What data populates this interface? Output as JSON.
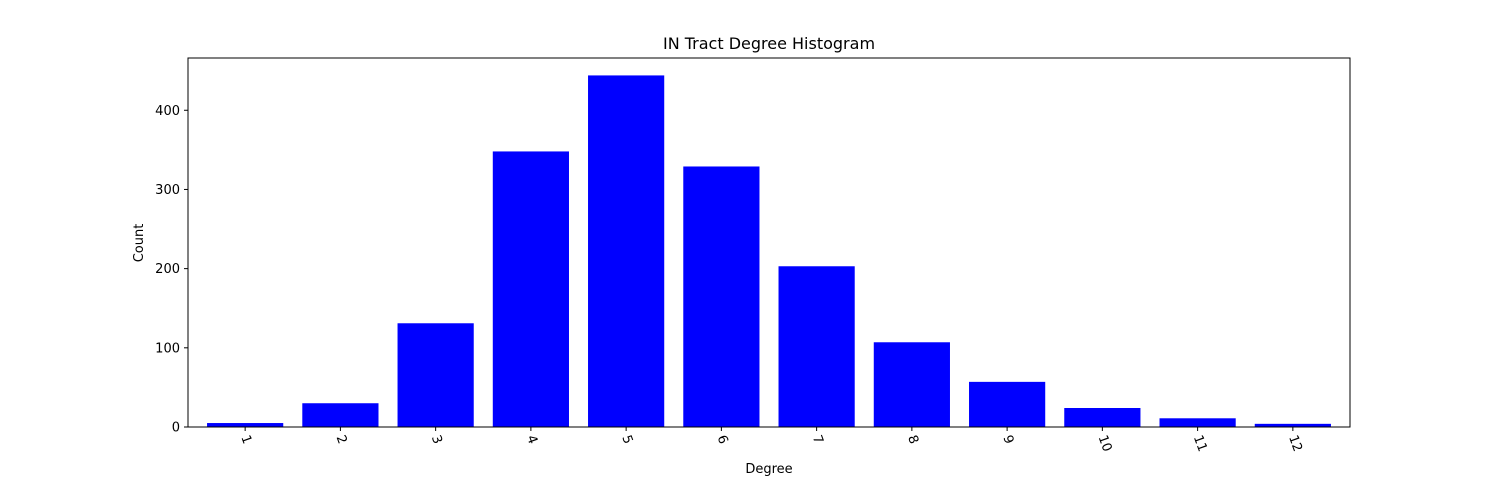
{
  "chart_data": {
    "type": "bar",
    "title": "IN Tract Degree Histogram",
    "xlabel": "Degree",
    "ylabel": "Count",
    "categories": [
      "1",
      "2",
      "3",
      "4",
      "5",
      "6",
      "7",
      "8",
      "9",
      "10",
      "11",
      "12"
    ],
    "values": [
      5,
      30,
      131,
      348,
      444,
      329,
      203,
      107,
      57,
      24,
      11,
      4
    ],
    "ylim": [
      0,
      466
    ],
    "yticks": [
      0,
      100,
      200,
      300,
      400
    ],
    "bar_color": "#0000ff",
    "grid": false,
    "xtick_rotation_deg": -70
  }
}
